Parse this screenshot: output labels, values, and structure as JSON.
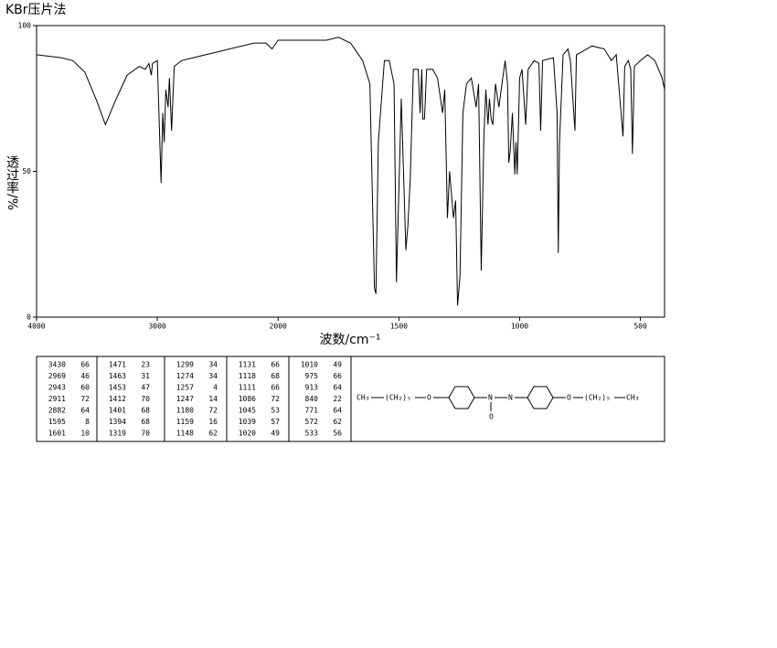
{
  "chart_data": {
    "type": "line",
    "title": "KBr压片法",
    "xlabel": "波数/cm⁻¹",
    "ylabel": "透过率/%",
    "color": "#000000",
    "xlim": [
      4000,
      400
    ],
    "xticks": [
      4000,
      3000,
      2000,
      1500,
      1000,
      500
    ],
    "ylim": [
      0,
      100
    ],
    "yticks": [
      0,
      50,
      100
    ],
    "x": [
      4000,
      3800,
      3700,
      3600,
      3500,
      3430,
      3350,
      3250,
      3150,
      3100,
      3070,
      3050,
      3040,
      3000,
      2969,
      2955,
      2943,
      2930,
      2911,
      2900,
      2882,
      2860,
      2800,
      2700,
      2600,
      2500,
      2400,
      2300,
      2200,
      2100,
      2050,
      2000,
      1900,
      1800,
      1750,
      1700,
      1650,
      1620,
      1601,
      1595,
      1585,
      1560,
      1540,
      1520,
      1510,
      1490,
      1471,
      1463,
      1453,
      1440,
      1420,
      1412,
      1405,
      1401,
      1394,
      1385,
      1360,
      1340,
      1319,
      1310,
      1299,
      1290,
      1274,
      1265,
      1257,
      1247,
      1235,
      1220,
      1200,
      1180,
      1170,
      1159,
      1148,
      1140,
      1131,
      1125,
      1118,
      1111,
      1100,
      1086,
      1070,
      1060,
      1050,
      1045,
      1039,
      1030,
      1020,
      1015,
      1010,
      1000,
      990,
      975,
      965,
      940,
      920,
      913,
      905,
      860,
      845,
      840,
      835,
      820,
      800,
      790,
      771,
      765,
      700,
      650,
      620,
      600,
      572,
      565,
      550,
      540,
      533,
      525,
      500,
      470,
      440,
      410,
      400
    ],
    "values": [
      90,
      89,
      88,
      84,
      74,
      66,
      74,
      83,
      86,
      85,
      87,
      83,
      87,
      88,
      46,
      70,
      60,
      78,
      72,
      82,
      64,
      86,
      88,
      89,
      90,
      91,
      92,
      93,
      94,
      94,
      92,
      95,
      95,
      95,
      96,
      94,
      88,
      80,
      10,
      8,
      60,
      88,
      88,
      80,
      12,
      75,
      23,
      31,
      47,
      85,
      85,
      70,
      85,
      68,
      68,
      85,
      85,
      82,
      70,
      78,
      34,
      50,
      34,
      40,
      4,
      14,
      70,
      80,
      82,
      72,
      80,
      16,
      62,
      78,
      66,
      75,
      68,
      66,
      80,
      72,
      82,
      88,
      80,
      53,
      57,
      70,
      49,
      60,
      49,
      82,
      85,
      66,
      85,
      88,
      87,
      64,
      88,
      89,
      70,
      22,
      60,
      90,
      92,
      88,
      64,
      90,
      93,
      92,
      88,
      90,
      62,
      86,
      88,
      85,
      56,
      86,
      88,
      90,
      88,
      82,
      78
    ]
  },
  "peak_table": {
    "groups": [
      [
        [
          3430,
          66
        ],
        [
          2969,
          46
        ],
        [
          2943,
          60
        ],
        [
          2911,
          72
        ],
        [
          2882,
          64
        ],
        [
          1595,
          8
        ],
        [
          1601,
          10
        ]
      ],
      [
        [
          1471,
          23
        ],
        [
          1463,
          31
        ],
        [
          1453,
          47
        ],
        [
          1412,
          70
        ],
        [
          1401,
          68
        ],
        [
          1394,
          68
        ],
        [
          1319,
          70
        ]
      ],
      [
        [
          1299,
          34
        ],
        [
          1274,
          34
        ],
        [
          1257,
          4
        ],
        [
          1247,
          14
        ],
        [
          1180,
          72
        ],
        [
          1159,
          16
        ],
        [
          1148,
          62
        ]
      ],
      [
        [
          1131,
          66
        ],
        [
          1118,
          68
        ],
        [
          1111,
          66
        ],
        [
          1086,
          72
        ],
        [
          1045,
          53
        ],
        [
          1039,
          57
        ],
        [
          1020,
          49
        ]
      ],
      [
        [
          1010,
          49
        ],
        [
          975,
          66
        ],
        [
          913,
          64
        ],
        [
          840,
          22
        ],
        [
          771,
          64
        ],
        [
          572,
          62
        ],
        [
          533,
          56
        ]
      ]
    ]
  },
  "structure": {
    "left_end": "CH₃",
    "left_chain": "(CH₂)₅",
    "left_o": "O",
    "n1": "N",
    "n_oxide": "O",
    "n2": "N",
    "right_o": "O",
    "right_chain": "(CH₂)₅",
    "right_end": "CH₃"
  }
}
